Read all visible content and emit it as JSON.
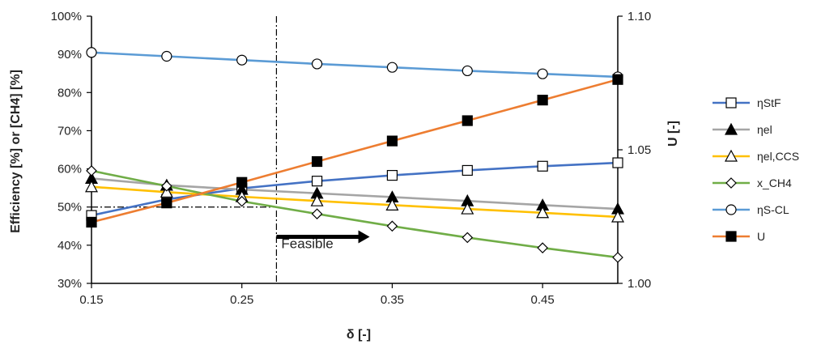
{
  "chart_data": {
    "type": "line",
    "xlabel": "δ [-]",
    "ylabel_left": "Efficiency [%] or [CH4] [%]",
    "ylabel_right": "U [-]",
    "xlim": [
      0.15,
      0.5
    ],
    "ylim_left": [
      30,
      100
    ],
    "ylim_right": [
      1.0,
      1.1
    ],
    "x_ticks": [
      0.15,
      0.25,
      0.35,
      0.45
    ],
    "x_tick_labels": [
      "0.15",
      "0.25",
      "0.35",
      "0.45"
    ],
    "y_left_ticks": [
      30,
      40,
      50,
      60,
      70,
      80,
      90,
      100
    ],
    "y_left_tick_labels": [
      "30%",
      "40%",
      "50%",
      "60%",
      "70%",
      "80%",
      "90%",
      "100%"
    ],
    "y_right_ticks": [
      1.0,
      1.05,
      1.1
    ],
    "y_right_tick_labels": [
      "1.00",
      "1.05",
      "1.10"
    ],
    "grid": false,
    "legend_position": "right",
    "x": [
      0.15,
      0.2,
      0.25,
      0.3,
      0.35,
      0.4,
      0.45,
      0.5
    ],
    "series": [
      {
        "name": "ηStF",
        "axis": "left",
        "color": "#4472C4",
        "marker": "square-open",
        "values": [
          47.8,
          52.0,
          54.9,
          56.8,
          58.3,
          59.6,
          60.7,
          61.6
        ]
      },
      {
        "name": "ηel",
        "axis": "left",
        "color": "#A5A5A5",
        "marker": "triangle-filled",
        "values": [
          57.5,
          55.7,
          54.6,
          53.6,
          52.6,
          51.6,
          50.5,
          49.5
        ]
      },
      {
        "name": "ηel,CCS",
        "axis": "left",
        "color": "#FFC000",
        "marker": "triangle-open",
        "values": [
          55.3,
          53.9,
          52.7,
          51.6,
          50.5,
          49.5,
          48.5,
          47.4
        ]
      },
      {
        "name": "x_CH4",
        "axis": "left",
        "color": "#70AD47",
        "marker": "diamond-open",
        "values": [
          59.5,
          55.5,
          51.5,
          48.2,
          45.0,
          42.0,
          39.3,
          36.8
        ]
      },
      {
        "name": "ηS-CL",
        "axis": "left",
        "color": "#5B9BD5",
        "marker": "circle-open",
        "values": [
          90.5,
          89.5,
          88.5,
          87.5,
          86.6,
          85.7,
          84.9,
          84.1
        ]
      },
      {
        "name": "U",
        "axis": "right",
        "color": "#ED7D31",
        "marker": "square-filled",
        "values": [
          1.0229,
          1.0301,
          1.0378,
          1.0456,
          1.0533,
          1.0609,
          1.0686,
          1.0763
        ]
      }
    ],
    "annotations": [
      {
        "text": "Feasible",
        "x": 0.273,
        "y": 38
      },
      {
        "type": "vertical-line",
        "style": "dash-dot",
        "x": 0.273
      },
      {
        "type": "horizontal-line",
        "style": "dash-dot",
        "y": 50,
        "x_from": 0.15,
        "x_to": 0.273
      },
      {
        "type": "arrow",
        "direction": "right",
        "x_from": 0.273,
        "x_to": 0.335,
        "y": 42.2
      }
    ]
  }
}
